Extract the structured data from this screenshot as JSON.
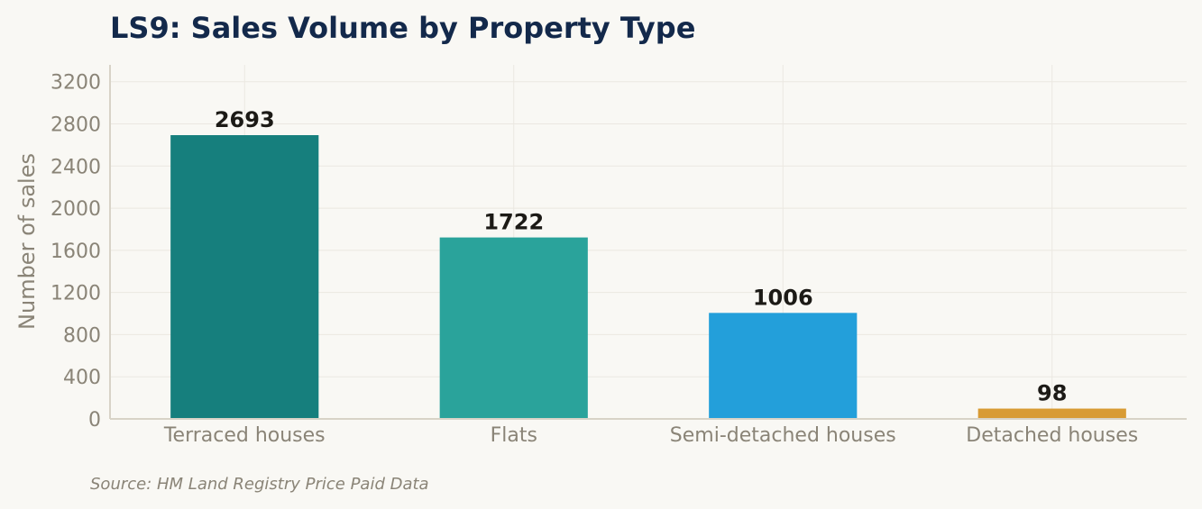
{
  "chart_data": {
    "type": "bar",
    "title": "LS9: Sales Volume by Property Type",
    "xlabel": "",
    "ylabel": "Number of sales",
    "categories": [
      "Terraced houses",
      "Flats",
      "Semi-detached houses",
      "Detached houses"
    ],
    "values": [
      2693,
      1722,
      1006,
      98
    ],
    "colors": [
      "#167f7d",
      "#2aa39b",
      "#239fda",
      "#d89b34"
    ],
    "ylim": [
      0,
      3360
    ],
    "yticks": [
      0,
      400,
      800,
      1200,
      1600,
      2000,
      2400,
      2800,
      3200
    ],
    "grid": true,
    "source": "Source: HM Land Registry Price Paid Data"
  }
}
